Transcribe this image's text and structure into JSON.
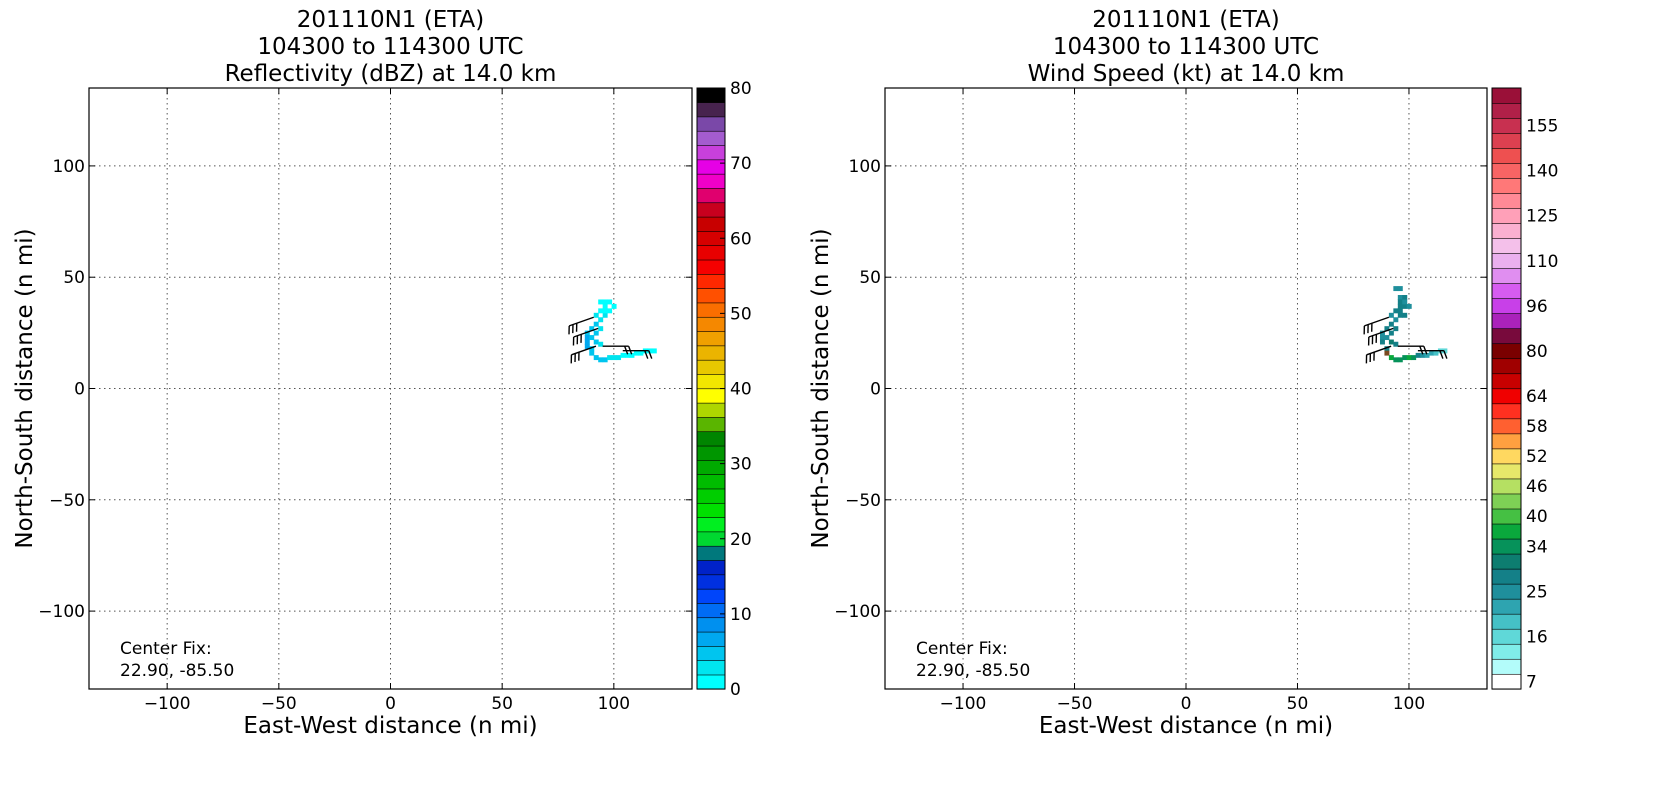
{
  "chart_data": [
    {
      "type": "heatmap",
      "title": [
        "201110N1 (ETA)",
        "104300 to 114300 UTC",
        "Reflectivity (dBZ) at 14.0 km"
      ],
      "xlabel": "East-West distance (n mi)",
      "ylabel": "North-South distance (n mi)",
      "xlim": [
        -135,
        135
      ],
      "ylim": [
        -135,
        135
      ],
      "xticks": [
        -100,
        -50,
        0,
        50,
        100
      ],
      "yticks": [
        -100,
        -50,
        0,
        50,
        100
      ],
      "xtick_labels": [
        "−100",
        "−50",
        "0",
        "50",
        "100"
      ],
      "ytick_labels": [
        "−100",
        "−50",
        "0",
        "50",
        "100"
      ],
      "grid": true,
      "annotation": [
        "Center Fix:",
        "22.90, -85.50"
      ],
      "colorbar": {
        "min": 0,
        "max": 80,
        "ticks": [
          0,
          10,
          20,
          30,
          40,
          50,
          60,
          70,
          80
        ],
        "tick_labels": [
          "0",
          "10",
          "20",
          "30",
          "40",
          "50",
          "60",
          "70",
          "80"
        ],
        "colors": [
          "#00ffff",
          "#00e5ef",
          "#00c5ef",
          "#00a8ef",
          "#0090ef",
          "#006cf5",
          "#0045fa",
          "#0030e0",
          "#0022c8",
          "#00787c",
          "#00d830",
          "#00ef20",
          "#00e000",
          "#00ce00",
          "#00bc00",
          "#00aa00",
          "#009600",
          "#008500",
          "#5ab500",
          "#aed600",
          "#ffff00",
          "#f2e600",
          "#e8c800",
          "#ebb400",
          "#f0a000",
          "#f58800",
          "#fa6e00",
          "#ff5000",
          "#ff2800",
          "#f50000",
          "#e80000",
          "#d60000",
          "#c80000",
          "#c8001e",
          "#e0006e",
          "#f000c8",
          "#e600e6",
          "#c840dc",
          "#a45ccf",
          "#7a48a8",
          "#47234e",
          "#000000"
        ]
      },
      "echo_cells": [
        [
          94,
          39,
          "#00ffff"
        ],
        [
          96,
          39,
          "#00ffff"
        ],
        [
          98,
          39,
          "#00ffff"
        ],
        [
          100,
          37,
          "#00ffff"
        ],
        [
          98,
          35,
          "#00ffff"
        ],
        [
          96,
          33,
          "#00e5ef"
        ],
        [
          94,
          31,
          "#00e5ef"
        ],
        [
          92,
          29,
          "#00c5ef"
        ],
        [
          90,
          27,
          "#00c5ef"
        ],
        [
          88,
          25,
          "#00c5ef"
        ],
        [
          88,
          23,
          "#00a8ef"
        ],
        [
          88,
          21,
          "#00a8ef"
        ],
        [
          88,
          19,
          "#00a8ef"
        ],
        [
          90,
          18,
          "#00c5ef"
        ],
        [
          90,
          16,
          "#00c5ef"
        ],
        [
          92,
          14,
          "#00c5ef"
        ],
        [
          94,
          13,
          "#00c5ef"
        ],
        [
          96,
          13,
          "#00c5ef"
        ],
        [
          98,
          14,
          "#00e5ef"
        ],
        [
          100,
          14,
          "#00e5ef"
        ],
        [
          102,
          14,
          "#00e5ef"
        ],
        [
          104,
          15,
          "#00ffff"
        ],
        [
          106,
          15,
          "#00ffff"
        ],
        [
          108,
          15,
          "#00ffff"
        ],
        [
          110,
          16,
          "#00ffff"
        ],
        [
          112,
          16,
          "#00ffff"
        ],
        [
          114,
          17,
          "#00ffff"
        ],
        [
          116,
          17,
          "#00ffff"
        ],
        [
          118,
          17,
          "#00ffff"
        ],
        [
          94,
          35,
          "#00ffff"
        ],
        [
          96,
          35,
          "#00ffff"
        ],
        [
          92,
          33,
          "#00e5ef"
        ],
        [
          94,
          27,
          "#00e5ef"
        ],
        [
          92,
          25,
          "#00c5ef"
        ],
        [
          90,
          23,
          "#00c5ef"
        ],
        [
          92,
          21,
          "#00c5ef"
        ],
        [
          94,
          20,
          "#00e5ef"
        ],
        [
          96,
          37,
          "#00ffff"
        ]
      ],
      "wind_barbs": [
        [
          91,
          32,
          -1,
          -0.35,
          3
        ],
        [
          93,
          27,
          -1,
          -0.35,
          3
        ],
        [
          92,
          19,
          -1,
          -0.35,
          3
        ],
        [
          95,
          19,
          1,
          0,
          2
        ],
        [
          104,
          17,
          1,
          0,
          2
        ]
      ]
    },
    {
      "type": "heatmap",
      "title": [
        "201110N1 (ETA)",
        "104300 to 114300 UTC",
        "Wind Speed (kt) at 14.0 km"
      ],
      "xlabel": "East-West distance (n mi)",
      "ylabel": "North-South distance (n mi)",
      "xlim": [
        -135,
        135
      ],
      "ylim": [
        -135,
        135
      ],
      "xticks": [
        -100,
        -50,
        0,
        50,
        100
      ],
      "yticks": [
        -100,
        -50,
        0,
        50,
        100
      ],
      "xtick_labels": [
        "−100",
        "−50",
        "0",
        "50",
        "100"
      ],
      "ytick_labels": [
        "−100",
        "−50",
        "0",
        "50",
        "100"
      ],
      "grid": true,
      "annotation": [
        "Center Fix:",
        "22.90, -85.50"
      ],
      "colorbar": {
        "ticks": [
          "7",
          "16",
          "25",
          "34",
          "40",
          "46",
          "52",
          "58",
          "64",
          "80",
          "96",
          "110",
          "125",
          "140",
          "155"
        ],
        "tick_boundary_index": [
          0,
          3,
          6,
          9,
          11,
          13,
          15,
          17,
          19,
          22,
          25,
          28,
          31,
          34,
          37
        ],
        "colors": [
          "#ffffff",
          "#b3fcfa",
          "#80ede9",
          "#5fd8d8",
          "#45c1c6",
          "#2ea4b0",
          "#1f8f9c",
          "#148088",
          "#0d7d70",
          "#06925a",
          "#0aa83c",
          "#45c043",
          "#7ed055",
          "#b5e062",
          "#e6e86a",
          "#ffd860",
          "#ffa040",
          "#ff6030",
          "#ff3020",
          "#f00000",
          "#c80000",
          "#a00000",
          "#7a0000",
          "#780a3c",
          "#aa22bb",
          "#c840e8",
          "#d65cf0",
          "#e08ef0",
          "#eab0ee",
          "#f4c0ea",
          "#fab0d0",
          "#ffa0b8",
          "#ff8a96",
          "#ff7878",
          "#f86464",
          "#ee5050",
          "#dc4050",
          "#c83050",
          "#b02048",
          "#9a1038"
        ],
        "tick_label_index": [
          0,
          3,
          6,
          9,
          11,
          13,
          15,
          17,
          19,
          22,
          25,
          28,
          31,
          34,
          37
        ]
      },
      "echo_cells": [
        [
          94,
          45,
          "#1f8f9c"
        ],
        [
          96,
          45,
          "#1f8f9c"
        ],
        [
          96,
          41,
          "#1f8f9c"
        ],
        [
          98,
          41,
          "#148088"
        ],
        [
          98,
          37,
          "#148088"
        ],
        [
          100,
          37,
          "#1f8f9c"
        ],
        [
          98,
          33,
          "#148088"
        ],
        [
          96,
          33,
          "#148088"
        ],
        [
          94,
          31,
          "#1f8f9c"
        ],
        [
          92,
          29,
          "#148088"
        ],
        [
          90,
          27,
          "#148088"
        ],
        [
          88,
          25,
          "#1f8f9c"
        ],
        [
          88,
          23,
          "#1f8f9c"
        ],
        [
          88,
          21,
          "#148088"
        ],
        [
          90,
          18,
          "#148088"
        ],
        [
          90,
          16,
          "#7a4a20"
        ],
        [
          92,
          14,
          "#0aa83c"
        ],
        [
          94,
          13,
          "#06925a"
        ],
        [
          96,
          13,
          "#06925a"
        ],
        [
          98,
          14,
          "#06925a"
        ],
        [
          100,
          14,
          "#0aa83c"
        ],
        [
          102,
          14,
          "#06925a"
        ],
        [
          104,
          15,
          "#148088"
        ],
        [
          106,
          15,
          "#1f8f9c"
        ],
        [
          108,
          15,
          "#2ea4b0"
        ],
        [
          110,
          16,
          "#2ea4b0"
        ],
        [
          112,
          16,
          "#45c1c6"
        ],
        [
          114,
          17,
          "#5fd8d8"
        ],
        [
          116,
          17,
          "#5fd8d8"
        ],
        [
          94,
          35,
          "#148088"
        ],
        [
          96,
          35,
          "#148088"
        ],
        [
          92,
          33,
          "#1f8f9c"
        ],
        [
          94,
          27,
          "#148088"
        ],
        [
          92,
          25,
          "#148088"
        ],
        [
          90,
          23,
          "#1f8f9c"
        ],
        [
          92,
          21,
          "#0d7d70"
        ],
        [
          94,
          20,
          "#148088"
        ],
        [
          96,
          37,
          "#148088"
        ],
        [
          96,
          39,
          "#148088"
        ],
        [
          98,
          39,
          "#1f8f9c"
        ]
      ],
      "wind_barbs": [
        [
          91,
          32,
          -1,
          -0.35,
          3
        ],
        [
          93,
          27,
          -1,
          -0.35,
          3
        ],
        [
          92,
          19,
          -1,
          -0.35,
          3
        ],
        [
          95,
          19,
          1,
          0,
          2
        ],
        [
          104,
          17,
          1,
          0,
          2
        ]
      ]
    }
  ]
}
